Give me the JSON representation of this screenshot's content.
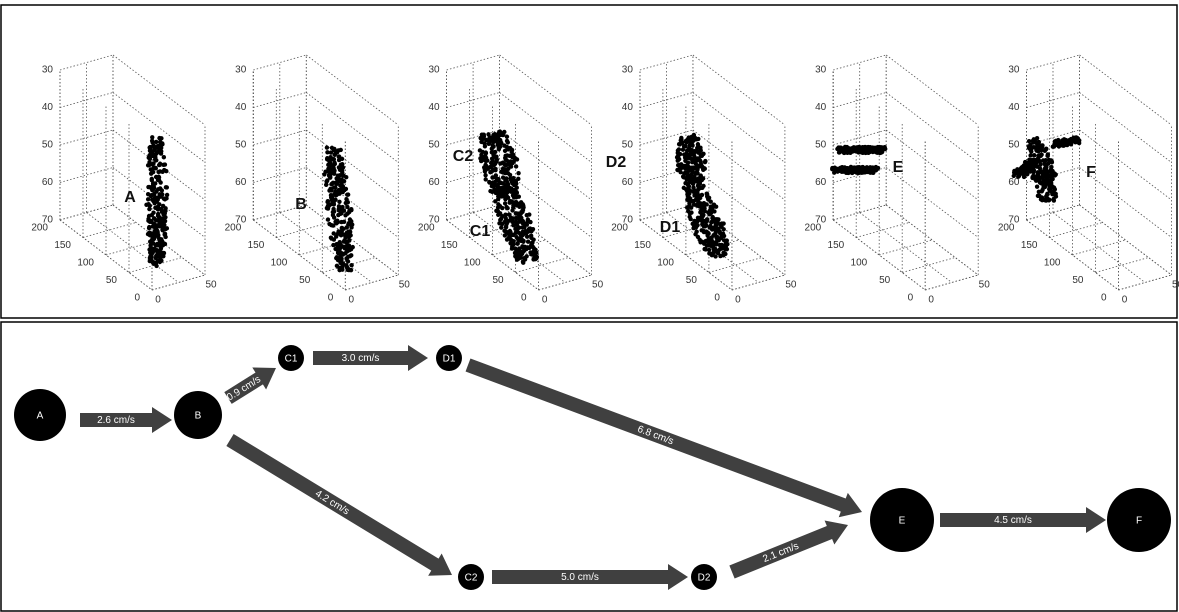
{
  "plots": [
    {
      "labels": [
        "A"
      ],
      "z_ticks": [
        "30",
        "40",
        "50",
        "60",
        "70"
      ],
      "y_ticks": [
        "200",
        "150",
        "100",
        "50",
        "0"
      ],
      "x_ticks": [
        "0",
        "50"
      ]
    },
    {
      "labels": [
        "B"
      ],
      "z_ticks": [
        "30",
        "40",
        "50",
        "60",
        "70"
      ],
      "y_ticks": [
        "200",
        "150",
        "100",
        "50",
        "0"
      ],
      "x_ticks": [
        "0",
        "50"
      ]
    },
    {
      "labels": [
        "C2",
        "C1"
      ],
      "z_ticks": [
        "30",
        "40",
        "50",
        "60",
        "70"
      ],
      "y_ticks": [
        "200",
        "150",
        "100",
        "50",
        "0"
      ],
      "x_ticks": [
        "0",
        "50"
      ]
    },
    {
      "labels": [
        "D2",
        "D1"
      ],
      "z_ticks": [
        "30",
        "40",
        "50",
        "60",
        "70"
      ],
      "y_ticks": [
        "200",
        "150",
        "100",
        "50",
        "0"
      ],
      "x_ticks": [
        "0",
        "50"
      ]
    },
    {
      "labels": [
        "E"
      ],
      "z_ticks": [
        "30",
        "40",
        "50",
        "60",
        "70"
      ],
      "y_ticks": [
        "200",
        "150",
        "100",
        "50",
        "0"
      ],
      "x_ticks": [
        "0",
        "50"
      ]
    },
    {
      "labels": [
        "F"
      ],
      "z_ticks": [
        "30",
        "40",
        "50",
        "60",
        "70"
      ],
      "y_ticks": [
        "200",
        "150",
        "100",
        "50",
        "0"
      ],
      "x_ticks": [
        "0",
        "50"
      ]
    }
  ],
  "nodes": [
    {
      "label": "A"
    },
    {
      "label": "B"
    },
    {
      "label": "C1"
    },
    {
      "label": "D1"
    },
    {
      "label": "C2"
    },
    {
      "label": "D2"
    },
    {
      "label": "E"
    },
    {
      "label": "F"
    }
  ],
  "edges": [
    {
      "label": "2.6 cm/s"
    },
    {
      "label": "0.9 cm/s"
    },
    {
      "label": "3.0 cm/s"
    },
    {
      "label": "6.8 cm/s"
    },
    {
      "label": "4.2 cm/s"
    },
    {
      "label": "5.0 cm/s"
    },
    {
      "label": "2.1  cm/s"
    },
    {
      "label": "4.5 cm/s"
    }
  ]
}
